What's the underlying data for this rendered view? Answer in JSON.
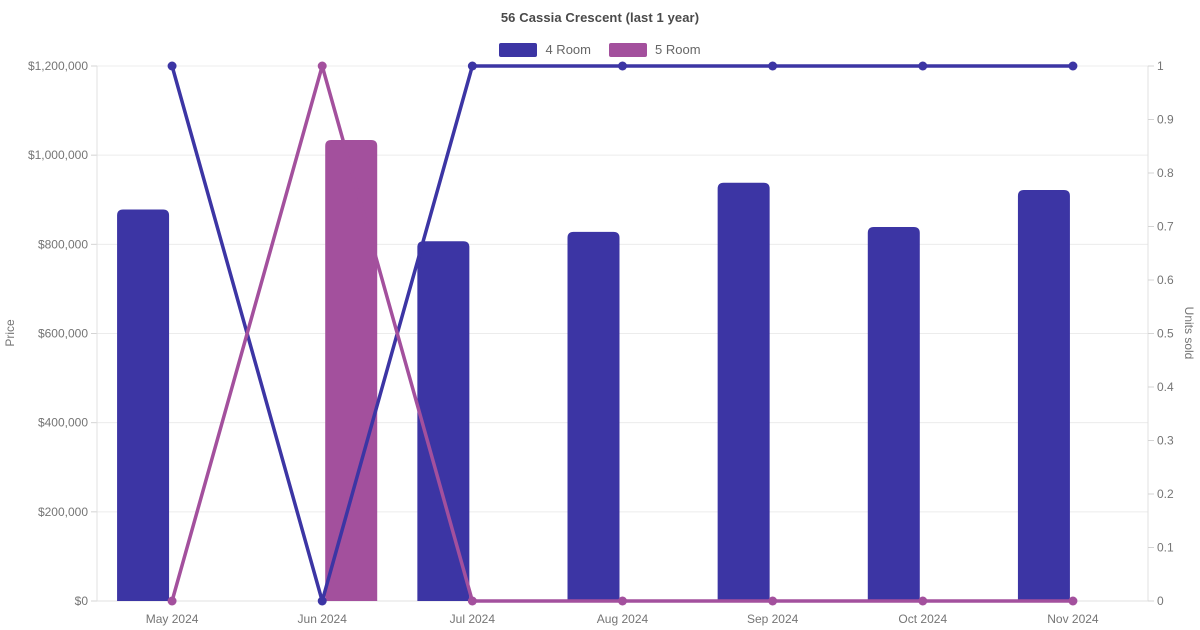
{
  "title": "56 Cassia Crescent (last 1 year)",
  "legend": [
    {
      "label": "4 Room",
      "color": "#3c35a4"
    },
    {
      "label": "5 Room",
      "color": "#a3509d"
    }
  ],
  "axes": {
    "left_title": "Price",
    "right_title": "Units sold",
    "left_tick_labels": [
      "$0",
      "$200,000",
      "$400,000",
      "$600,000",
      "$800,000",
      "$1,000,000",
      "$1,200,000"
    ],
    "right_tick_labels": [
      "0",
      "0.1",
      "0.2",
      "0.3",
      "0.4",
      "0.5",
      "0.6",
      "0.7",
      "0.8",
      "0.9",
      "1"
    ]
  },
  "chart_data": {
    "type": "bar+line combo",
    "title": "56 Cassia Crescent (last 1 year)",
    "categories": [
      "May 2024",
      "Jun 2024",
      "Jul 2024",
      "Aug 2024",
      "Sep 2024",
      "Oct 2024",
      "Nov 2024"
    ],
    "left_axis": {
      "label": "Price",
      "min": 0,
      "max": 1200000,
      "tick_step": 200000,
      "format": "$ thousands-separated"
    },
    "right_axis": {
      "label": "Units sold",
      "min": 0,
      "max": 1,
      "tick_step": 0.1
    },
    "grid": "horizontal only",
    "legend_position": "top center",
    "bar_series": [
      {
        "name": "4 Room",
        "color": "#3c35a4",
        "axis": "left",
        "values": [
          878000,
          null,
          807000,
          828000,
          938000,
          839000,
          922000
        ]
      },
      {
        "name": "5 Room",
        "color": "#a3509d",
        "axis": "left",
        "values": [
          null,
          1034000,
          null,
          null,
          null,
          null,
          null
        ]
      }
    ],
    "line_series": [
      {
        "name": "4 Room",
        "color": "#3c35a4",
        "axis": "right",
        "values": [
          1,
          0,
          1,
          1,
          1,
          1,
          1
        ]
      },
      {
        "name": "5 Room",
        "color": "#a3509d",
        "axis": "right",
        "values": [
          0,
          1,
          0,
          0,
          0,
          0,
          0
        ]
      }
    ]
  },
  "colors": {
    "grid": "#ececec",
    "axis_line": "#e0e0e0",
    "tick_mark": "#d4d4d4",
    "tick_text": "#757575",
    "title_text": "#4a4a4a",
    "legend_text": "#666666",
    "background": "#ffffff"
  }
}
